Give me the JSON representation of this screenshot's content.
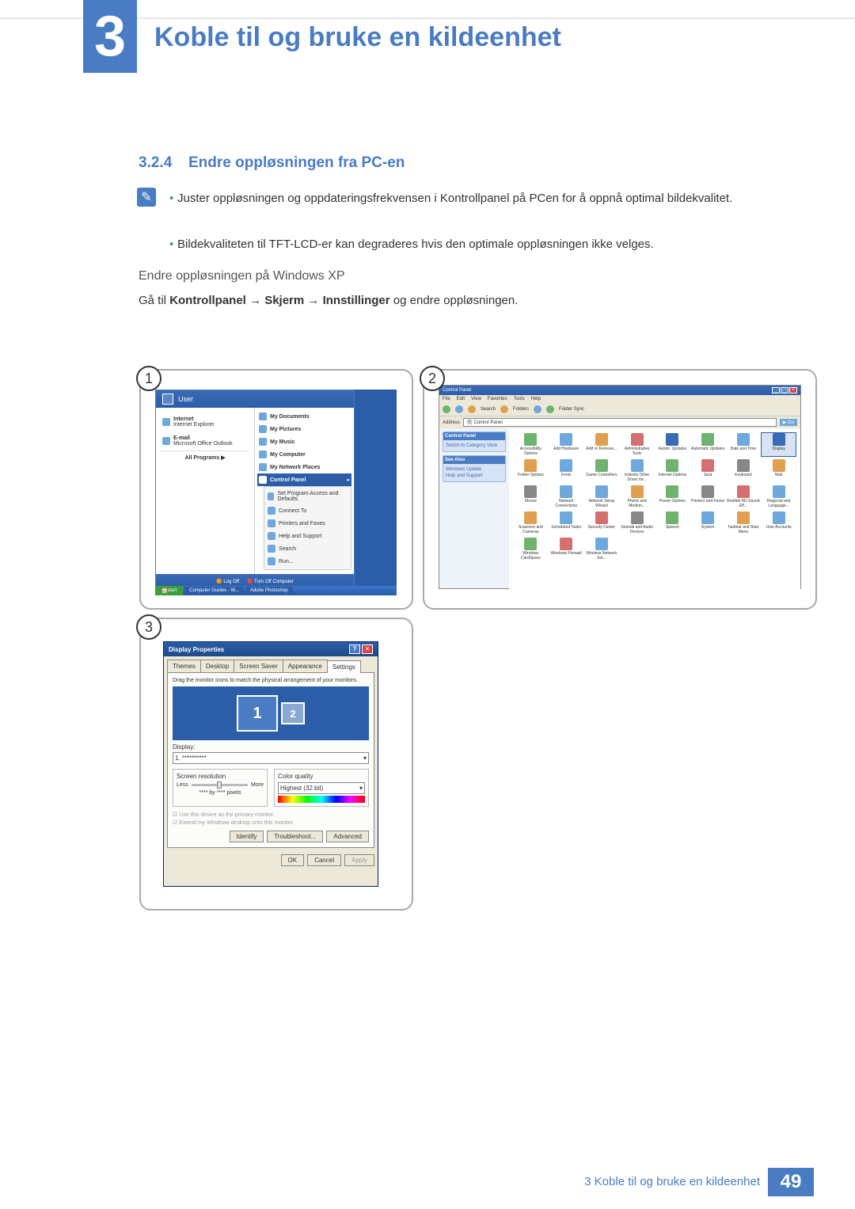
{
  "chapter": {
    "number": "3",
    "title": "Koble til og bruke en kildeenhet"
  },
  "section": {
    "number": "3.2.4",
    "title": "Endre oppløsningen fra PC-en"
  },
  "bullets": [
    "Juster oppløsningen og oppdateringsfrekvensen i Kontrollpanel på PCen for å oppnå optimal bildekvalitet.",
    "Bildekvaliteten til TFT-LCD-er kan degraderes hvis den optimale oppløsningen ikke velges."
  ],
  "subheading": "Endre oppløsningen på Windows XP",
  "instruction": {
    "pre": "Gå til ",
    "p1": "Kontrollpanel",
    "p2": "Skjerm",
    "p3": "Innstillinger",
    "post": " og endre oppløsningen."
  },
  "steps": {
    "s1": "1",
    "s2": "2",
    "s3": "3"
  },
  "fig1": {
    "user": "User",
    "left": [
      {
        "title": "Internet",
        "sub": "Internet Explorer"
      },
      {
        "title": "E-mail",
        "sub": "Microsoft Office Outlook"
      }
    ],
    "right": [
      "My Documents",
      "My Pictures",
      "My Music",
      "My Computer",
      "My Network Places"
    ],
    "selected": "Control Panel",
    "submenu": [
      "Set Program Access and Defaults",
      "Connect To",
      "Printers and Faxes",
      "Help and Support",
      "Search",
      "Run..."
    ],
    "allprograms": "All Programs",
    "logoff": "Log Off",
    "shutdown": "Turn Off Computer",
    "start": "start",
    "tb1": "Computer Guides - W...",
    "tb2": "Adobe Photoshop"
  },
  "fig2": {
    "title": "Control Panel",
    "menus": [
      "File",
      "Edit",
      "View",
      "Favorites",
      "Tools",
      "Help"
    ],
    "tb": {
      "search": "Search",
      "folders": "Folders",
      "foldersync": "Folder Sync"
    },
    "addrLabel": "Address",
    "addr": "Control Panel",
    "go": "Go",
    "panel1": {
      "hd": "Control Panel",
      "li": "Switch to Category View"
    },
    "panel2": {
      "hd": "See Also",
      "li1": "Windows Update",
      "li2": "Help and Support"
    },
    "items": [
      {
        "lbl": "Accessibility Options",
        "c": "#6fb36f"
      },
      {
        "lbl": "Add Hardware",
        "c": "#6fa8dc"
      },
      {
        "lbl": "Add or Remove...",
        "c": "#e0a050"
      },
      {
        "lbl": "Administrative Tools",
        "c": "#d47070"
      },
      {
        "lbl": "Autom. Updates",
        "c": "#3b6ab5"
      },
      {
        "lbl": "Automatic Updates",
        "c": "#6fb36f"
      },
      {
        "lbl": "Date and Time",
        "c": "#6fa8dc"
      },
      {
        "lbl": "Display",
        "c": "#3b6ab5",
        "sel": true
      },
      {
        "lbl": "Folder Options",
        "c": "#e0a050"
      },
      {
        "lbl": "Fonts",
        "c": "#6fa8dc"
      },
      {
        "lbl": "Game Controllers",
        "c": "#6fb36f"
      },
      {
        "lbl": "Indexity Other Driver for...",
        "c": "#6fa8dc"
      },
      {
        "lbl": "Internet Options",
        "c": "#6fb36f"
      },
      {
        "lbl": "Java",
        "c": "#d47070"
      },
      {
        "lbl": "Keyboard",
        "c": "#888"
      },
      {
        "lbl": "Mail",
        "c": "#e0a050"
      },
      {
        "lbl": "Mouse",
        "c": "#888"
      },
      {
        "lbl": "Network Connections",
        "c": "#6fa8dc"
      },
      {
        "lbl": "Network Setup Wizard",
        "c": "#6fa8dc"
      },
      {
        "lbl": "Phone and Modem...",
        "c": "#e0a050"
      },
      {
        "lbl": "Power Options",
        "c": "#6fb36f"
      },
      {
        "lbl": "Printers and Faxes",
        "c": "#888"
      },
      {
        "lbl": "Realtek HD Sound Eff...",
        "c": "#d47070"
      },
      {
        "lbl": "Regional and Language...",
        "c": "#6fa8dc"
      },
      {
        "lbl": "Scanners and Cameras",
        "c": "#e0a050"
      },
      {
        "lbl": "Scheduled Tasks",
        "c": "#6fa8dc"
      },
      {
        "lbl": "Security Center",
        "c": "#d47070"
      },
      {
        "lbl": "Sounds and Audio Devices",
        "c": "#888"
      },
      {
        "lbl": "Speech",
        "c": "#6fb36f"
      },
      {
        "lbl": "System",
        "c": "#6fa8dc"
      },
      {
        "lbl": "Taskbar and Start Menu",
        "c": "#e0a050"
      },
      {
        "lbl": "User Accounts",
        "c": "#6fa8dc"
      },
      {
        "lbl": "Windows CardSpace",
        "c": "#6fb36f"
      },
      {
        "lbl": "Windows Firewall",
        "c": "#d47070"
      },
      {
        "lbl": "Wireless Network Set...",
        "c": "#6fa8dc"
      }
    ]
  },
  "fig3": {
    "title": "Display Properties",
    "tabs": [
      "Themes",
      "Desktop",
      "Screen Saver",
      "Appearance",
      "Settings"
    ],
    "activeTab": 4,
    "drag": "Drag the monitor icons to match the physical arrangement of your monitors.",
    "mon1": "1",
    "mon2": "2",
    "displayLabel": "Display:",
    "displayVal": "1. **********",
    "screenRes": "Screen resolution",
    "less": "Less",
    "more": "More",
    "resVal": "**** by **** pixels",
    "colorQ": "Color quality",
    "colorVal": "Highest (32 bit)",
    "chk1": "Use this device as the primary monitor.",
    "chk2": "Extend my Windows desktop onto this monitor.",
    "identify": "Identify",
    "troubleshoot": "Troubleshoot...",
    "advanced": "Advanced",
    "ok": "OK",
    "cancel": "Cancel",
    "apply": "Apply"
  },
  "footer": {
    "text": "3 Koble til og bruke en kildeenhet",
    "page": "49"
  },
  "colors": {
    "accent": "#4a7cc4"
  }
}
